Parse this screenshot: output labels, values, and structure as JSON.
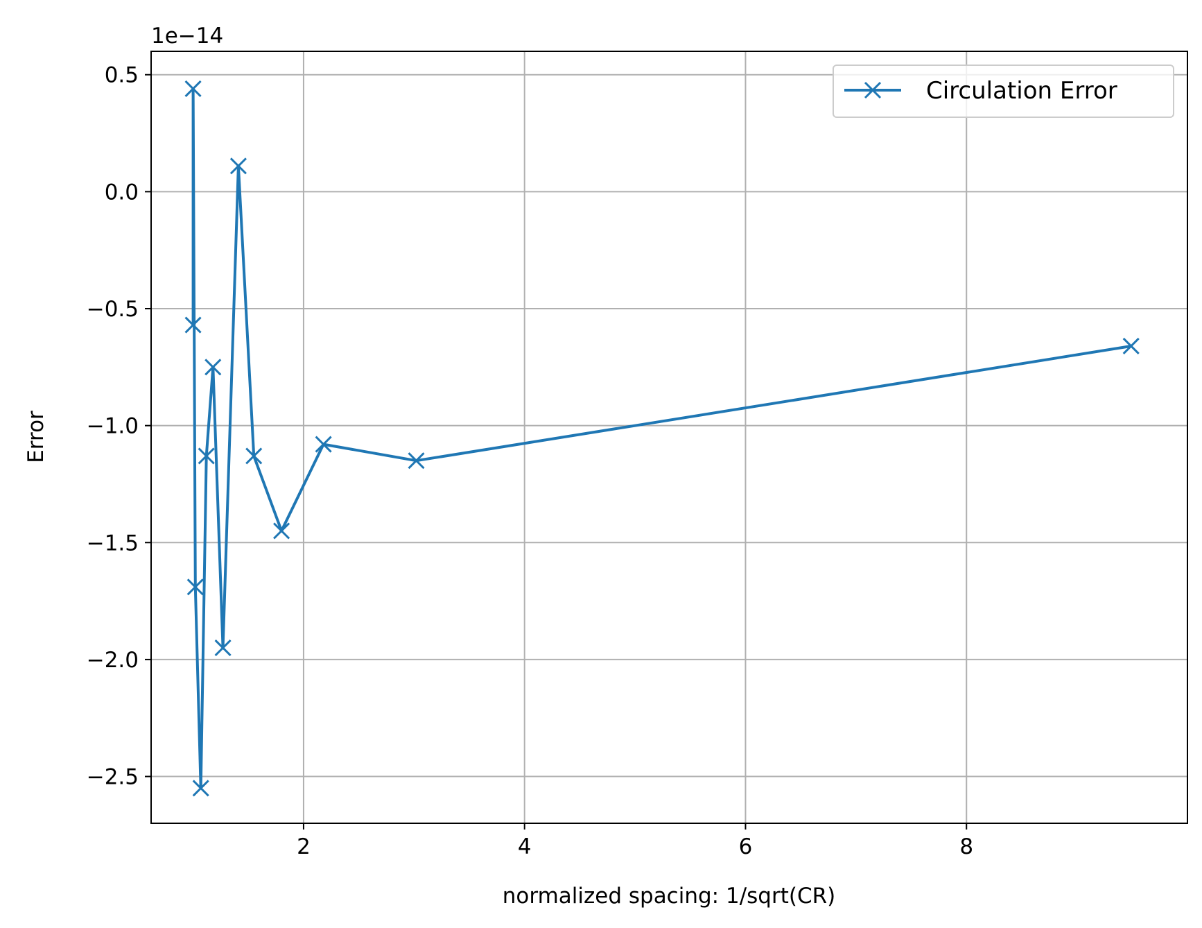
{
  "chart_data": {
    "type": "line",
    "xlabel": "normalized spacing: 1/sqrt(CR)",
    "ylabel": "Error",
    "offset_text": "1e−14",
    "xlim": [
      0.62,
      10.0
    ],
    "ylim": [
      -2.7,
      0.6
    ],
    "xticks": [
      2,
      4,
      6,
      8
    ],
    "xtick_labels": [
      "2",
      "4",
      "6",
      "8"
    ],
    "yticks": [
      0.5,
      0.0,
      -0.5,
      -1.0,
      -1.5,
      -2.0,
      -2.5
    ],
    "ytick_labels": [
      "0.5",
      "0.0",
      "−0.5",
      "−1.0",
      "−1.5",
      "−2.0",
      "−2.5"
    ],
    "grid": true,
    "legend_position": "top-right",
    "series": [
      {
        "name": "Circulation Error",
        "color": "#1f77b4",
        "marker": "x",
        "x": [
          1.0,
          1.0,
          1.02,
          1.07,
          1.12,
          1.18,
          1.27,
          1.41,
          1.55,
          1.8,
          2.18,
          3.02,
          9.49
        ],
        "y": [
          -0.57,
          0.44,
          -1.69,
          -2.55,
          -1.13,
          -0.75,
          -1.95,
          0.11,
          -1.13,
          -1.45,
          -1.08,
          -1.15,
          -0.66
        ]
      }
    ]
  }
}
